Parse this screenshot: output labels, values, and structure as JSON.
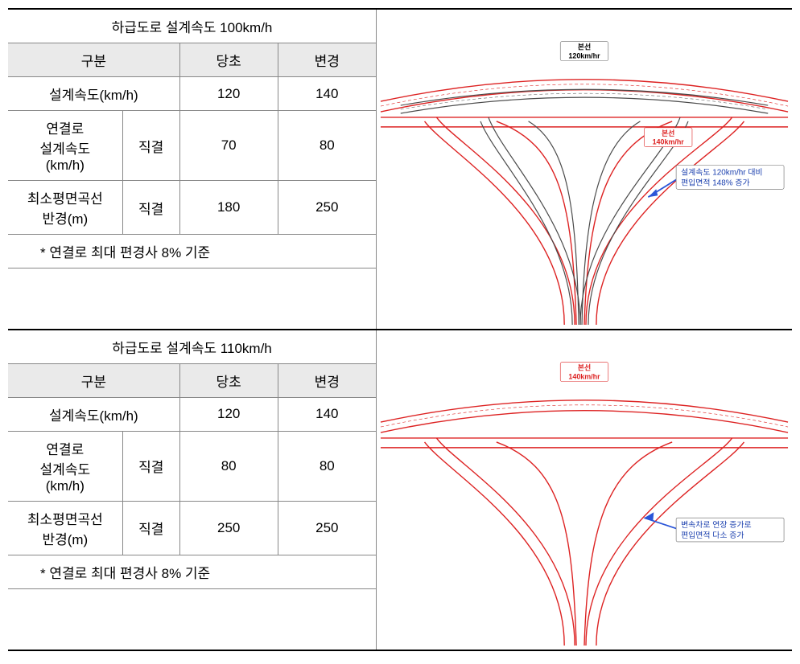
{
  "sections": [
    {
      "title": "하급도로 설계속도 100km/h",
      "header": {
        "gubun": "구분",
        "orig": "당초",
        "chg": "변경"
      },
      "rows": {
        "r1": {
          "label": "설계속도(km/h)",
          "orig": "120",
          "chg": "140"
        },
        "r2": {
          "label": "연결로\n설계속도\n(km/h)",
          "type": "직결",
          "orig": "70",
          "chg": "80"
        },
        "r3": {
          "label": "최소평면곡선\n반경(m)",
          "type": "직결",
          "orig": "180",
          "chg": "250"
        }
      },
      "footnote": "* 연결로 최대 편경사 8% 기준",
      "diagram": {
        "show_black": true,
        "label_top": {
          "line1": "본선",
          "line2": "120km/hr",
          "color": "black"
        },
        "label_mid": {
          "line1": "본선",
          "line2": "140km/hr",
          "color": "red"
        },
        "annotation": {
          "line1": "설계속도 120km/hr 대비",
          "line2": "편입면적 148% 증가"
        },
        "colors": {
          "red": "#d22",
          "black": "#4a4a4a",
          "blue": "#2a55d8",
          "border": "#666666"
        }
      }
    },
    {
      "title": "하급도로 설계속도 110km/h",
      "header": {
        "gubun": "구분",
        "orig": "당초",
        "chg": "변경"
      },
      "rows": {
        "r1": {
          "label": "설계속도(km/h)",
          "orig": "120",
          "chg": "140"
        },
        "r2": {
          "label": "연결로\n설계속도\n(km/h)",
          "type": "직결",
          "orig": "80",
          "chg": "80"
        },
        "r3": {
          "label": "최소평면곡선\n반경(m)",
          "type": "직결",
          "orig": "250",
          "chg": "250"
        }
      },
      "footnote": "* 연결로 최대 편경사 8% 기준",
      "diagram": {
        "show_black": false,
        "label_top": {
          "line1": "본선",
          "line2": "140km/hr",
          "color": "red"
        },
        "annotation": {
          "line1": "변속차로 연장 증가로",
          "line2": "편입면적 다소 증가"
        },
        "colors": {
          "red": "#d22",
          "black": "#4a4a4a",
          "blue": "#2a55d8",
          "border": "#666666"
        }
      }
    }
  ]
}
